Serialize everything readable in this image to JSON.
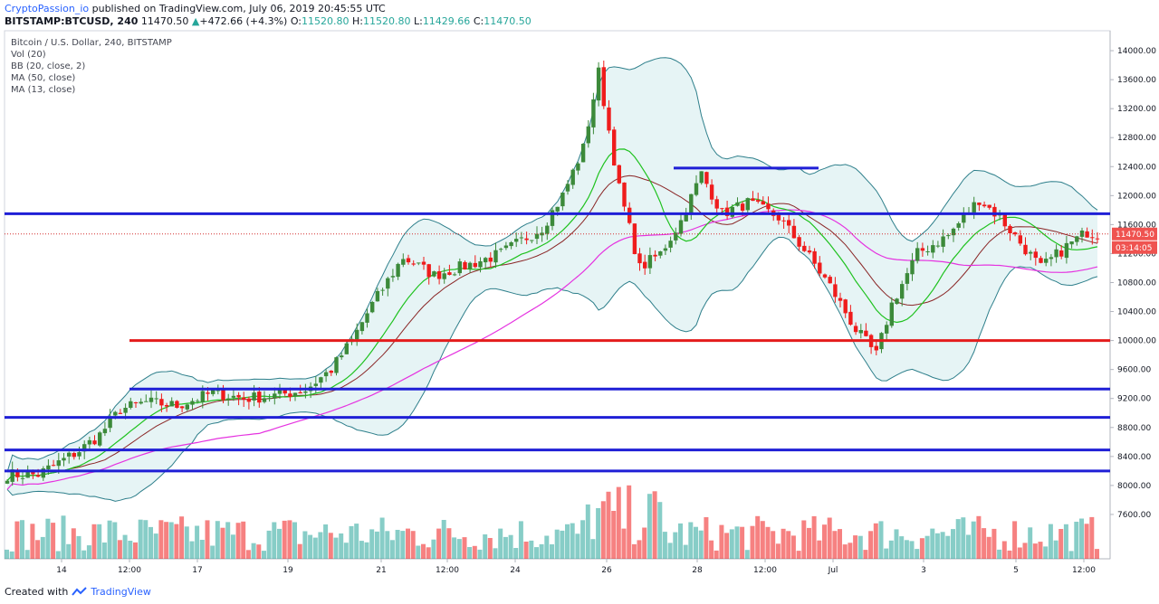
{
  "header": {
    "author": "CryptoPassion_io",
    "published": "published on TradingView.com, July 06, 2019 20:45:55 UTC",
    "symbol": "BITSTAMP:BTCUSD, 240",
    "last": "11470.50",
    "change_icon": "triangle-up-icon",
    "change": "+472.66 (+4.3%)",
    "o_label": "O:",
    "o": "11520.80",
    "h_label": "H:",
    "h": "11520.80",
    "l_label": "L:",
    "l": "11429.66",
    "c_label": "C:",
    "c": "11470.50"
  },
  "legend": [
    "Bitcoin / U.S. Dollar, 240, BITSTAMP",
    "Vol (20)",
    "BB (20, close, 2)",
    "MA (50, close)",
    "MA (13, close)"
  ],
  "footer": {
    "created": "Created with",
    "brand_icon": "tradingview-logo-icon",
    "brand": "TradingView"
  },
  "colors": {
    "up": "#26a69a",
    "up_candle": "#3c8a3a",
    "down": "#ef1c1c",
    "bb": "#2e7f8b",
    "bb_fill": "#e6f4f5",
    "ma50": "#e533e0",
    "ma13": "#1fc21f",
    "mid": "#8a2626",
    "blue_line": "#1f1fd6",
    "red_line": "#e41c1c"
  },
  "chart_data": {
    "type": "candlestick",
    "title": "Bitcoin / U.S. Dollar, 240, BITSTAMP",
    "ylim": [
      7200,
      14300
    ],
    "y_ticks": [
      7600,
      8000,
      8400,
      8800,
      9200,
      9600,
      10000,
      10400,
      10800,
      11200,
      11600,
      12000,
      12400,
      12800,
      13200,
      13600,
      14000
    ],
    "x_ticks": [
      "14",
      "12:00",
      "17",
      "19",
      "21",
      "12:00",
      "24",
      "26",
      "28",
      "12:00",
      "Jul",
      "3",
      "5",
      "12:00"
    ],
    "price_label": "11470.50",
    "countdown_label": "03:14:05",
    "horizontal_levels": [
      {
        "price": 11750,
        "color": "blue",
        "extent": "full"
      },
      {
        "price": 12380,
        "color": "blue",
        "extent": "partial"
      },
      {
        "price": 10000,
        "color": "red",
        "extent": "partial"
      },
      {
        "price": 9330,
        "color": "blue",
        "extent": "partial"
      },
      {
        "price": 8940,
        "color": "blue",
        "extent": "full"
      },
      {
        "price": 8490,
        "color": "blue",
        "extent": "full"
      },
      {
        "price": 8200,
        "color": "blue",
        "extent": "full"
      }
    ],
    "anchors": [
      [
        0,
        8150
      ],
      [
        6,
        8150
      ],
      [
        14,
        8480
      ],
      [
        18,
        8700
      ],
      [
        22,
        9050
      ],
      [
        27,
        9150
      ],
      [
        33,
        9100
      ],
      [
        40,
        9280
      ],
      [
        46,
        9200
      ],
      [
        52,
        9240
      ],
      [
        58,
        9320
      ],
      [
        63,
        9600
      ],
      [
        67,
        10000
      ],
      [
        71,
        10500
      ],
      [
        77,
        11150
      ],
      [
        83,
        10900
      ],
      [
        90,
        11050
      ],
      [
        96,
        11200
      ],
      [
        104,
        11560
      ],
      [
        108,
        12000
      ],
      [
        112,
        12650
      ],
      [
        115,
        13700
      ],
      [
        119,
        12100
      ],
      [
        123,
        11000
      ],
      [
        127,
        11200
      ],
      [
        131,
        11650
      ],
      [
        135,
        12300
      ],
      [
        139,
        11750
      ],
      [
        144,
        11900
      ],
      [
        150,
        11700
      ],
      [
        155,
        11250
      ],
      [
        160,
        10750
      ],
      [
        165,
        10150
      ],
      [
        169,
        9800
      ],
      [
        172,
        10500
      ],
      [
        177,
        11200
      ],
      [
        183,
        11450
      ],
      [
        189,
        11950
      ],
      [
        193,
        11700
      ],
      [
        197,
        11350
      ],
      [
        201,
        11000
      ],
      [
        206,
        11300
      ],
      [
        210,
        11500
      ],
      [
        212,
        11471
      ]
    ]
  }
}
